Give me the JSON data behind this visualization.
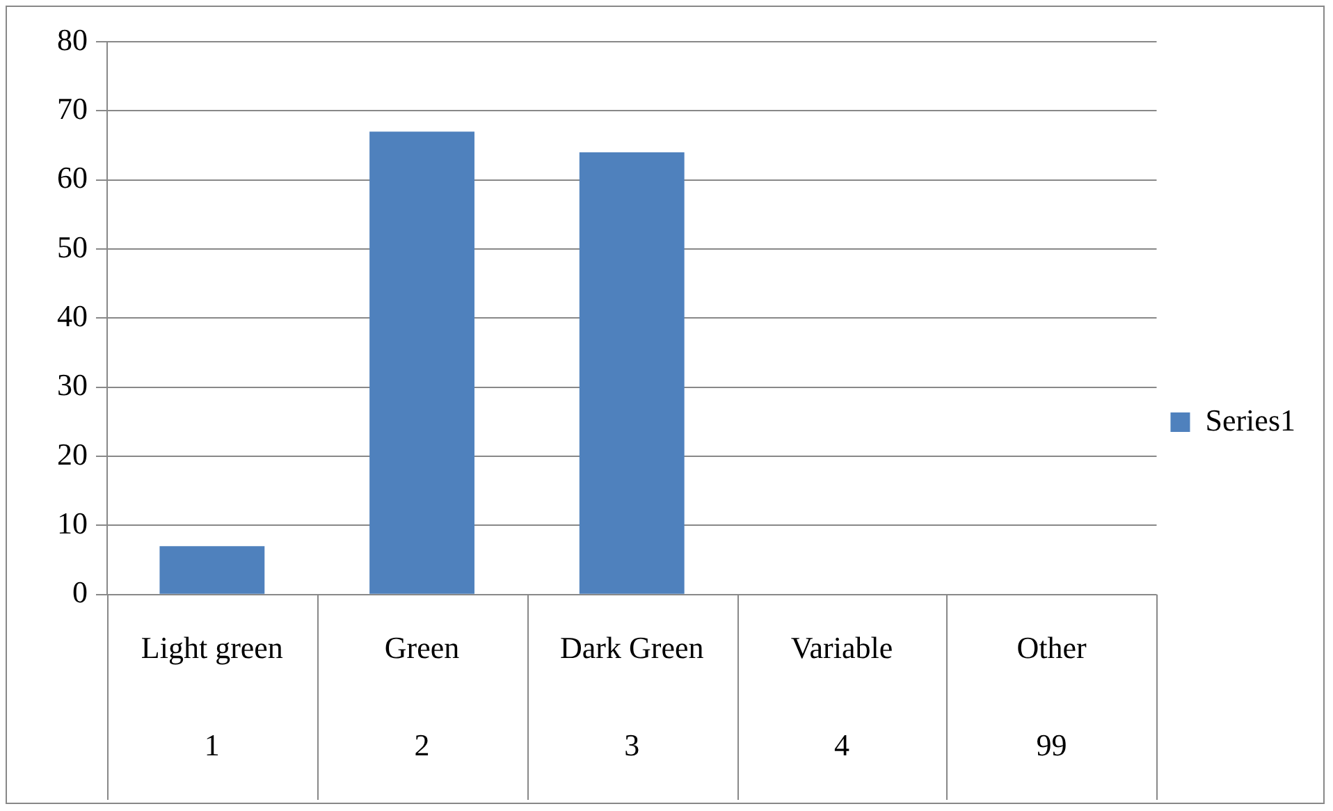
{
  "chart_data": {
    "type": "bar",
    "categories": [
      "Light green\n1",
      "Green\n2",
      "Dark Green\n3",
      "Variable\n4",
      "Other\n99"
    ],
    "series": [
      {
        "name": "Series1",
        "color": "#4f81bd",
        "values": [
          7,
          67,
          64,
          0,
          0
        ]
      }
    ],
    "ylim": [
      0,
      80
    ],
    "yticks": [
      0,
      10,
      20,
      30,
      40,
      50,
      60,
      70,
      80
    ],
    "grid": "y",
    "legend": "right"
  }
}
